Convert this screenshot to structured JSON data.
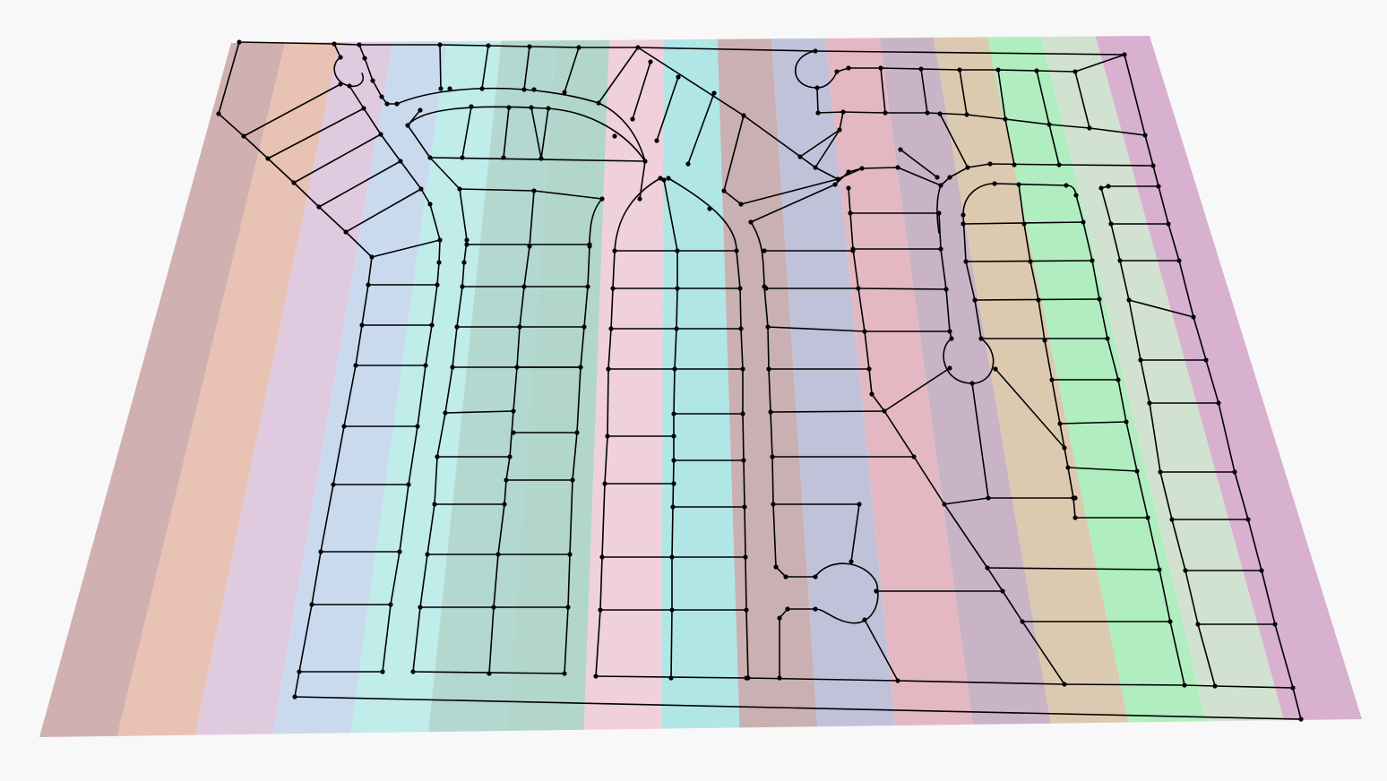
{
  "diagram": {
    "background_color": "#f8f8f8",
    "line_color": "#000000",
    "band_colors": [
      "#d0b0b0",
      "#e8c2b2",
      "#e0cae0",
      "#cadaee",
      "#c0ecea",
      "#b2d8d0",
      "#b2d6cc",
      "#f0d0da",
      "#b0e6e6",
      "#cab0b2",
      "#c0c2da",
      "#e4b8c2",
      "#c8b4c6",
      "#dccab0",
      "#b0eec0",
      "#d2e2d0",
      "#d8b0d0"
    ]
  }
}
